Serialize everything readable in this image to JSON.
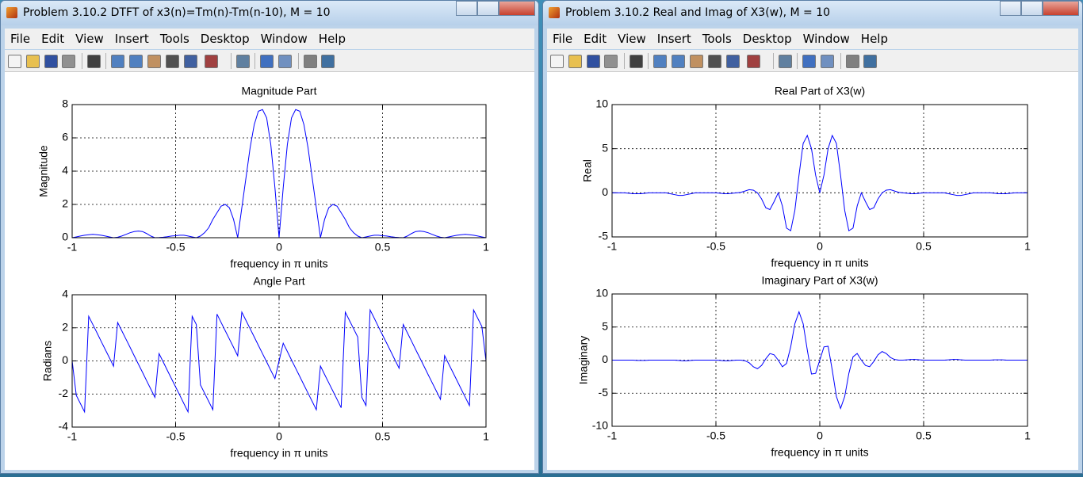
{
  "windows": [
    {
      "title": "Problem 3.10.2 DTFT of x3(n)=Tm(n)-Tm(n-10), M = 10",
      "menu": [
        "File",
        "Edit",
        "View",
        "Insert",
        "Tools",
        "Desktop",
        "Window",
        "Help"
      ],
      "chart_data": [
        {
          "type": "line",
          "title": "Magnitude Part",
          "xlabel": "frequency in π units",
          "ylabel": "Magnitude",
          "x": [
            -1,
            -0.98,
            -0.96,
            -0.94,
            -0.92,
            -0.9,
            -0.88,
            -0.86,
            -0.84,
            -0.82,
            -0.8,
            -0.78,
            -0.76,
            -0.74,
            -0.72,
            -0.7,
            -0.68,
            -0.66,
            -0.64,
            -0.62,
            -0.6,
            -0.58,
            -0.56,
            -0.54,
            -0.52,
            -0.5,
            -0.48,
            -0.46,
            -0.44,
            -0.42,
            -0.4,
            -0.38,
            -0.36,
            -0.34,
            -0.32,
            -0.3,
            -0.28,
            -0.26,
            -0.24,
            -0.22,
            -0.2,
            -0.18,
            -0.16,
            -0.14,
            -0.12,
            -0.1,
            -0.08,
            -0.06,
            -0.04,
            -0.02,
            0,
            0.02,
            0.04,
            0.06,
            0.08,
            0.1,
            0.12,
            0.14,
            0.16,
            0.18,
            0.2,
            0.22,
            0.24,
            0.26,
            0.28,
            0.3,
            0.32,
            0.34,
            0.36,
            0.38,
            0.4,
            0.42,
            0.44,
            0.46,
            0.48,
            0.5,
            0.52,
            0.54,
            0.56,
            0.58,
            0.6,
            0.62,
            0.64,
            0.66,
            0.68,
            0.7,
            0.72,
            0.74,
            0.76,
            0.78,
            0.8,
            0.82,
            0.84,
            0.86,
            0.88,
            0.9,
            0.92,
            0.94,
            0.96,
            0.98,
            1
          ],
          "values": [
            0,
            0.05,
            0.1,
            0.15,
            0.18,
            0.2,
            0.18,
            0.15,
            0.1,
            0.05,
            0,
            0.03,
            0.1,
            0.2,
            0.3,
            0.37,
            0.4,
            0.37,
            0.25,
            0.1,
            0,
            0.01,
            0.03,
            0.06,
            0.1,
            0.12,
            0.15,
            0.15,
            0.1,
            0.05,
            0,
            0.1,
            0.3,
            0.6,
            1.1,
            1.5,
            1.9,
            2.0,
            1.8,
            1.1,
            0,
            1.8,
            3.6,
            5.4,
            6.8,
            7.6,
            7.7,
            7.2,
            5.6,
            3.0,
            0,
            3.0,
            5.6,
            7.2,
            7.7,
            7.6,
            6.8,
            5.4,
            3.6,
            1.8,
            0,
            1.1,
            1.8,
            2.0,
            1.9,
            1.5,
            1.1,
            0.6,
            0.3,
            0.1,
            0,
            0.05,
            0.1,
            0.15,
            0.15,
            0.12,
            0.1,
            0.06,
            0.03,
            0.01,
            0,
            0.1,
            0.25,
            0.37,
            0.4,
            0.37,
            0.3,
            0.2,
            0.1,
            0.03,
            0,
            0.05,
            0.1,
            0.15,
            0.18,
            0.2,
            0.18,
            0.15,
            0.1,
            0.05,
            0
          ],
          "color": "#0000ff",
          "xlim": [
            -1,
            1
          ],
          "xticks": [
            -1,
            -0.5,
            0,
            0.5,
            1
          ],
          "ylim": [
            0,
            8
          ],
          "yticks": [
            0,
            2,
            4,
            6,
            8
          ],
          "grid": true
        },
        {
          "type": "line",
          "title": "Angle Part",
          "xlabel": "frequency in π units",
          "ylabel": "Radians",
          "x": [
            -1,
            -0.98,
            -0.96,
            -0.94,
            -0.92,
            -0.9,
            -0.88,
            -0.86,
            -0.84,
            -0.82,
            -0.8,
            -0.78,
            -0.76,
            -0.74,
            -0.72,
            -0.7,
            -0.68,
            -0.66,
            -0.64,
            -0.62,
            -0.6,
            -0.58,
            -0.56,
            -0.54,
            -0.52,
            -0.5,
            -0.48,
            -0.46,
            -0.44,
            -0.42,
            -0.4,
            -0.38,
            -0.36,
            -0.34,
            -0.32,
            -0.3,
            -0.28,
            -0.26,
            -0.24,
            -0.22,
            -0.2,
            -0.18,
            -0.16,
            -0.14,
            -0.12,
            -0.1,
            -0.08,
            -0.06,
            -0.04,
            -0.02,
            0,
            0.02,
            0.04,
            0.06,
            0.08,
            0.1,
            0.12,
            0.14,
            0.16,
            0.18,
            0.2,
            0.22,
            0.24,
            0.26,
            0.28,
            0.3,
            0.32,
            0.34,
            0.36,
            0.38,
            0.4,
            0.42,
            0.44,
            0.46,
            0.48,
            0.5,
            0.52,
            0.54,
            0.56,
            0.58,
            0.6,
            0.62,
            0.64,
            0.66,
            0.68,
            0.7,
            0.72,
            0.74,
            0.76,
            0.78,
            0.8,
            0.82,
            0.84,
            0.86,
            0.88,
            0.9,
            0.92,
            0.94,
            0.96,
            0.98,
            1
          ],
          "values": [
            0,
            -2.08,
            -2.58,
            -3.08,
            2.7,
            2.2,
            1.7,
            1.19,
            0.69,
            0.19,
            -0.32,
            2.32,
            1.82,
            1.32,
            0.82,
            0.31,
            -0.19,
            -0.69,
            -1.2,
            -1.7,
            -2.2,
            0.44,
            -0.06,
            -0.57,
            -1.07,
            -1.57,
            -2.07,
            -2.58,
            -3.08,
            2.7,
            2.2,
            -1.45,
            -1.95,
            -2.45,
            -2.95,
            2.83,
            2.32,
            1.82,
            1.32,
            0.82,
            0.31,
            2.95,
            2.45,
            1.95,
            1.45,
            0.94,
            0.44,
            -0.06,
            -0.57,
            -1.07,
            0,
            1.07,
            0.57,
            0.06,
            -0.44,
            -0.94,
            -1.45,
            -1.95,
            -2.45,
            -2.95,
            -0.31,
            -0.82,
            -1.32,
            -1.82,
            -2.32,
            -2.83,
            2.95,
            2.45,
            1.95,
            1.45,
            -2.2,
            -2.7,
            3.08,
            2.58,
            2.07,
            1.57,
            1.07,
            0.57,
            0.06,
            -0.44,
            2.2,
            1.7,
            1.2,
            0.69,
            0.19,
            -0.31,
            -0.82,
            -1.32,
            -1.82,
            -2.32,
            0.32,
            -0.19,
            -0.69,
            -1.19,
            -1.7,
            -2.2,
            -2.7,
            3.08,
            2.58,
            2.08,
            0
          ],
          "color": "#0000ff",
          "xlim": [
            -1,
            1
          ],
          "xticks": [
            -1,
            -0.5,
            0,
            0.5,
            1
          ],
          "ylim": [
            -4,
            4
          ],
          "yticks": [
            -4,
            -2,
            0,
            2,
            4
          ],
          "grid": true
        }
      ]
    },
    {
      "title": "Problem 3.10.2 Real and Imag of X3(w), M = 10",
      "menu": [
        "File",
        "Edit",
        "View",
        "Insert",
        "Tools",
        "Desktop",
        "Window",
        "Help"
      ],
      "chart_data": [
        {
          "type": "line",
          "title": "Real Part of X3(w)",
          "xlabel": "frequency in π units",
          "ylabel": "Real",
          "x": [
            -1,
            -0.98,
            -0.96,
            -0.94,
            -0.92,
            -0.9,
            -0.88,
            -0.86,
            -0.84,
            -0.82,
            -0.8,
            -0.78,
            -0.76,
            -0.74,
            -0.72,
            -0.7,
            -0.68,
            -0.66,
            -0.64,
            -0.62,
            -0.6,
            -0.58,
            -0.56,
            -0.54,
            -0.52,
            -0.5,
            -0.48,
            -0.46,
            -0.44,
            -0.42,
            -0.4,
            -0.38,
            -0.36,
            -0.34,
            -0.32,
            -0.3,
            -0.28,
            -0.26,
            -0.24,
            -0.22,
            -0.2,
            -0.18,
            -0.16,
            -0.14,
            -0.12,
            -0.1,
            -0.08,
            -0.06,
            -0.04,
            -0.02,
            0,
            0.02,
            0.04,
            0.06,
            0.08,
            0.1,
            0.12,
            0.14,
            0.16,
            0.18,
            0.2,
            0.22,
            0.24,
            0.26,
            0.28,
            0.3,
            0.32,
            0.34,
            0.36,
            0.38,
            0.4,
            0.42,
            0.44,
            0.46,
            0.48,
            0.5,
            0.52,
            0.54,
            0.56,
            0.58,
            0.6,
            0.62,
            0.64,
            0.66,
            0.68,
            0.7,
            0.72,
            0.74,
            0.76,
            0.78,
            0.8,
            0.82,
            0.84,
            0.86,
            0.88,
            0.9,
            0.92,
            0.94,
            0.96,
            0.98,
            1
          ],
          "values": [
            0,
            0,
            0,
            0,
            -0.05,
            -0.1,
            -0.1,
            -0.1,
            -0.05,
            0,
            0,
            0,
            0,
            0,
            -0.1,
            -0.2,
            -0.3,
            -0.3,
            -0.2,
            -0.1,
            0,
            0,
            0,
            0,
            0,
            0,
            -0.05,
            -0.1,
            -0.1,
            -0.05,
            0,
            0.05,
            0.2,
            0.35,
            0.3,
            0,
            -0.7,
            -1.7,
            -1.9,
            -1.0,
            0,
            -1.5,
            -4.0,
            -4.3,
            -2.0,
            2.0,
            5.6,
            6.5,
            5.0,
            2.0,
            0,
            2.0,
            5.0,
            6.5,
            5.6,
            2.0,
            -2.0,
            -4.3,
            -4.0,
            -1.5,
            0,
            -1.0,
            -1.9,
            -1.7,
            -0.7,
            0,
            0.3,
            0.35,
            0.2,
            0.05,
            0,
            -0.05,
            -0.1,
            -0.1,
            -0.05,
            0,
            0,
            0,
            0,
            0,
            0,
            -0.1,
            -0.2,
            -0.3,
            -0.3,
            -0.2,
            -0.1,
            0,
            0,
            0,
            0,
            0,
            -0.05,
            -0.1,
            -0.1,
            -0.1,
            -0.05,
            0,
            0,
            0,
            0
          ],
          "color": "#0000ff",
          "xlim": [
            -1,
            1
          ],
          "xticks": [
            -1,
            -0.5,
            0,
            0.5,
            1
          ],
          "ylim": [
            -5,
            10
          ],
          "yticks": [
            -5,
            0,
            5,
            10
          ],
          "grid": true
        },
        {
          "type": "line",
          "title": "Imaginary Part of X3(w)",
          "xlabel": "frequency in π units",
          "ylabel": "Imaginary",
          "x": [
            -1,
            -0.98,
            -0.96,
            -0.94,
            -0.92,
            -0.9,
            -0.88,
            -0.86,
            -0.84,
            -0.82,
            -0.8,
            -0.78,
            -0.76,
            -0.74,
            -0.72,
            -0.7,
            -0.68,
            -0.66,
            -0.64,
            -0.62,
            -0.6,
            -0.58,
            -0.56,
            -0.54,
            -0.52,
            -0.5,
            -0.48,
            -0.46,
            -0.44,
            -0.42,
            -0.4,
            -0.38,
            -0.36,
            -0.34,
            -0.32,
            -0.3,
            -0.28,
            -0.26,
            -0.24,
            -0.22,
            -0.2,
            -0.18,
            -0.16,
            -0.14,
            -0.12,
            -0.1,
            -0.08,
            -0.06,
            -0.04,
            -0.02,
            0,
            0.02,
            0.04,
            0.06,
            0.08,
            0.1,
            0.12,
            0.14,
            0.16,
            0.18,
            0.2,
            0.22,
            0.24,
            0.26,
            0.28,
            0.3,
            0.32,
            0.34,
            0.36,
            0.38,
            0.4,
            0.42,
            0.44,
            0.46,
            0.48,
            0.5,
            0.52,
            0.54,
            0.56,
            0.58,
            0.6,
            0.62,
            0.64,
            0.66,
            0.68,
            0.7,
            0.72,
            0.74,
            0.76,
            0.78,
            0.8,
            0.82,
            0.84,
            0.86,
            0.88,
            0.9,
            0.92,
            0.94,
            0.96,
            0.98,
            1
          ],
          "values": [
            0,
            0,
            0,
            0,
            0,
            0,
            -0.05,
            -0.05,
            -0.05,
            0,
            0,
            0,
            0,
            0,
            0,
            0,
            -0.05,
            -0.1,
            -0.1,
            -0.05,
            0,
            0,
            0,
            0,
            0,
            0,
            -0.05,
            -0.1,
            -0.1,
            -0.05,
            0,
            0,
            -0.1,
            -0.4,
            -1.0,
            -1.3,
            -0.8,
            0.2,
            1.0,
            0.8,
            0,
            -1.0,
            -0.5,
            2.0,
            5.5,
            7.3,
            5.5,
            1.5,
            -2.1,
            -2.0,
            0,
            2.0,
            2.1,
            -1.5,
            -5.5,
            -7.3,
            -5.5,
            -2.0,
            0.5,
            1.0,
            0,
            -0.8,
            -1.0,
            -0.2,
            0.8,
            1.3,
            1.0,
            0.4,
            0.1,
            0,
            0,
            0.05,
            0.1,
            0.1,
            0.05,
            0,
            0,
            0,
            0,
            0,
            0,
            0.05,
            0.1,
            0.1,
            0.05,
            0,
            0,
            0,
            0,
            0,
            0,
            0,
            0.05,
            0.05,
            0.05,
            0,
            0,
            0,
            0,
            0,
            0
          ],
          "color": "#0000ff",
          "xlim": [
            -1,
            1
          ],
          "xticks": [
            -1,
            -0.5,
            0,
            0.5,
            1
          ],
          "ylim": [
            -10,
            10
          ],
          "yticks": [
            -10,
            -5,
            0,
            5,
            10
          ],
          "grid": true
        }
      ]
    }
  ]
}
